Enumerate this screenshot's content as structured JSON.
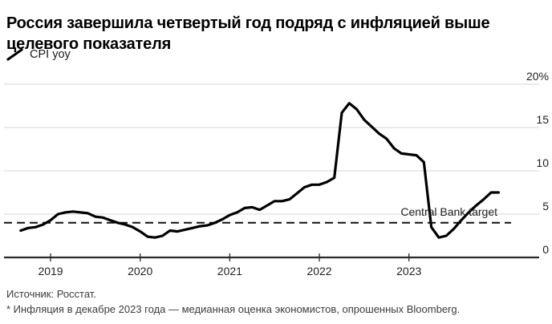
{
  "header": {
    "title": "Россия завершила четвертый год подряд с инфляцией выше целевого показателя"
  },
  "legend": {
    "cpi_label": "CPI yoy"
  },
  "footer": {
    "source": "Источник: Росстат.",
    "note": "* Инфляция в декабре 2023 года — медианная оценка экономистов, опрошенных Bloomberg."
  },
  "colors": {
    "line": "#000000",
    "grid": "#d5d5d5",
    "axis": "#2a2a2a",
    "target": "#111111",
    "text": "#1f1f1f"
  },
  "chart_data": {
    "type": "line",
    "title": "Россия завершила четвертый год подряд с инфляцией выше целевого показателя",
    "xlabel": "",
    "ylabel": "",
    "ylim": [
      0,
      20
    ],
    "grid": "horizontal",
    "legend_position": "top-left",
    "y_ticks": [
      0,
      5,
      10,
      15,
      20
    ],
    "y_tick_labels": [
      "0",
      "5",
      "10",
      "15",
      "20%"
    ],
    "x_tick_labels": [
      "2019",
      "2020",
      "2021",
      "2022",
      "2023"
    ],
    "x_tick_indices": [
      4,
      16,
      28,
      40,
      52
    ],
    "target_line": {
      "value": 4,
      "label": "Central Bank target"
    },
    "series": [
      {
        "name": "CPI yoy",
        "frequency": "monthly",
        "start_month": "2018-08",
        "end_month": "2023-12",
        "values": [
          3.1,
          3.4,
          3.5,
          3.8,
          4.3,
          5.0,
          5.2,
          5.3,
          5.2,
          5.1,
          4.7,
          4.6,
          4.3,
          4.0,
          3.8,
          3.5,
          3.0,
          2.4,
          2.3,
          2.5,
          3.1,
          3.0,
          3.2,
          3.4,
          3.6,
          3.7,
          4.0,
          4.4,
          4.9,
          5.2,
          5.7,
          5.8,
          5.5,
          6.0,
          6.5,
          6.5,
          6.7,
          7.4,
          8.1,
          8.4,
          8.4,
          8.7,
          9.2,
          16.7,
          17.8,
          17.1,
          15.9,
          15.1,
          14.3,
          13.7,
          12.6,
          12.0,
          11.9,
          11.8,
          11.0,
          3.5,
          2.3,
          2.5,
          3.3,
          4.3,
          5.2,
          6.0,
          6.7,
          7.5,
          7.5
        ]
      }
    ]
  }
}
